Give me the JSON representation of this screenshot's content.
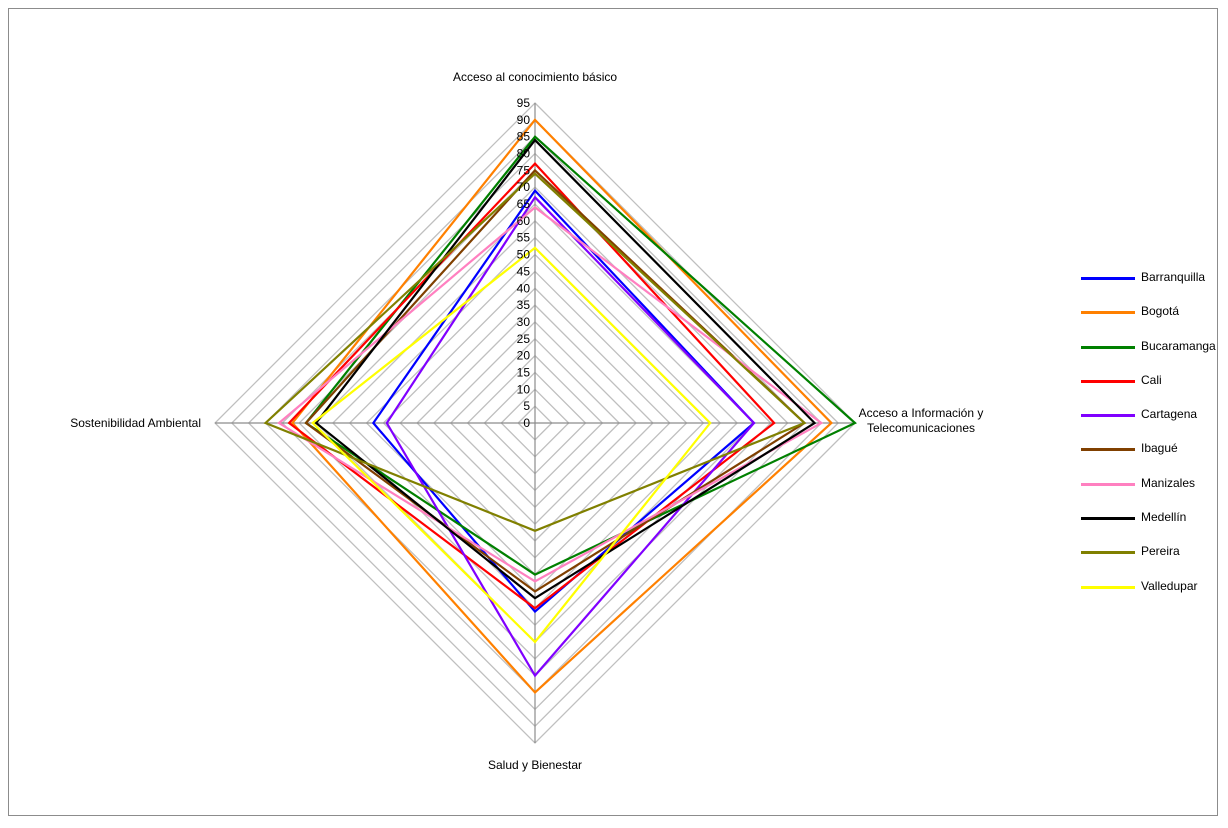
{
  "chart_data": {
    "type": "radar",
    "axes": [
      "Acceso al conocimiento básico",
      [
        "Acceso a Información y",
        "Telecomunicaciones"
      ],
      "Salud y Bienestar",
      "Sostenibilidad Ambiental"
    ],
    "ticks": [
      0,
      5,
      10,
      15,
      20,
      25,
      30,
      35,
      40,
      45,
      50,
      55,
      60,
      65,
      70,
      75,
      80,
      85,
      90,
      95
    ],
    "rmax": 95,
    "grid": true,
    "legend_position": "right",
    "series": [
      {
        "name": "Barranquilla",
        "color": "#0000FF",
        "values": [
          69,
          65,
          56,
          48
        ]
      },
      {
        "name": "Bogotá",
        "color": "#FF8000",
        "values": [
          90,
          88,
          80,
          72
        ]
      },
      {
        "name": "Bucaramanga",
        "color": "#008000",
        "values": [
          85,
          95,
          45,
          68
        ]
      },
      {
        "name": "Cali",
        "color": "#FF0000",
        "values": [
          77,
          71,
          55,
          73
        ]
      },
      {
        "name": "Cartagena",
        "color": "#8000FF",
        "values": [
          67,
          65,
          75,
          44
        ]
      },
      {
        "name": "Ibagué",
        "color": "#804000",
        "values": [
          75,
          80,
          50,
          68
        ]
      },
      {
        "name": "Manizales",
        "color": "#FF80C0",
        "values": [
          64,
          85,
          47,
          76
        ]
      },
      {
        "name": "Medellín",
        "color": "#000000",
        "values": [
          84,
          83,
          52,
          65
        ]
      },
      {
        "name": "Pereira",
        "color": "#808000",
        "values": [
          74,
          80,
          32,
          80
        ]
      },
      {
        "name": "Valledupar",
        "color": "#FFFF00",
        "values": [
          52,
          52,
          65,
          66
        ]
      }
    ]
  }
}
